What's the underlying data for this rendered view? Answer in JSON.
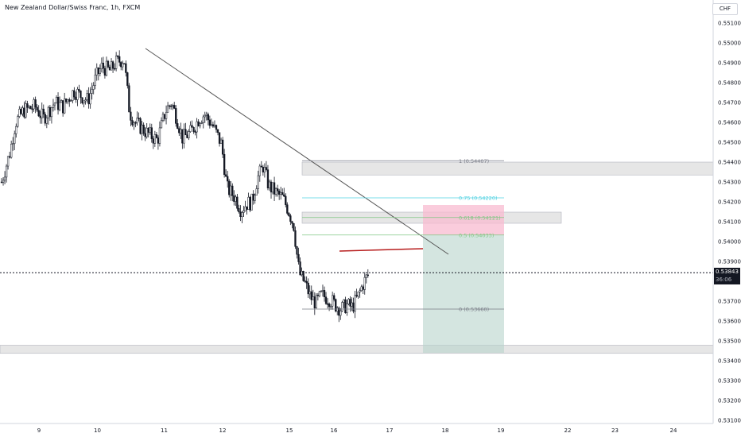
{
  "header": {
    "title": "New Zealand Dollar/Swiss Franc, 1h, FXCM",
    "currency": "CHF"
  },
  "price_tag": {
    "price": "0.53843",
    "countdown": "36:06"
  },
  "colors": {
    "up": "#131722",
    "down": "#131722",
    "trendline": "#555555",
    "fib_gray": "#787b86",
    "fib_teal": "#4dd0e1",
    "fib_green": "#81c784",
    "zone": "#e0e0e0",
    "red_zone": "#f8bbd0",
    "green_zone": "#b7d3cc",
    "red_line": "#b71c1c"
  },
  "chart_data": {
    "type": "candlestick",
    "symbol": "NZDCHF",
    "timeframe": "1h",
    "y_tick_labels": [
      "0.55100",
      "0.55000",
      "0.54900",
      "0.54800",
      "0.54700",
      "0.54600",
      "0.54500",
      "0.54400",
      "0.54300",
      "0.54200",
      "0.54100",
      "0.54000",
      "0.53900",
      "0.53700",
      "0.53600",
      "0.53500",
      "0.53400",
      "0.53300",
      "0.53200",
      "0.53100"
    ],
    "x_tick_labels": [
      {
        "label": "9",
        "x": 0
      },
      {
        "label": "10",
        "x": 21
      },
      {
        "label": "11",
        "x": 45
      },
      {
        "label": "12",
        "x": 66
      },
      {
        "label": "15",
        "x": 90
      },
      {
        "label": "16",
        "x": 106
      },
      {
        "label": "17",
        "x": 126
      },
      {
        "label": "18",
        "x": 146
      },
      {
        "label": "19",
        "x": 166
      },
      {
        "label": "22",
        "x": 190
      },
      {
        "label": "23",
        "x": 207
      },
      {
        "label": "24",
        "x": 228
      }
    ],
    "current_price": 0.53843,
    "close_path": [
      {
        "x": 0,
        "y": 0.543
      },
      {
        "x": 3,
        "y": 0.5445
      },
      {
        "x": 5,
        "y": 0.546
      },
      {
        "x": 8,
        "y": 0.5466
      },
      {
        "x": 12,
        "y": 0.5468
      },
      {
        "x": 15,
        "y": 0.5462
      },
      {
        "x": 19,
        "y": 0.547
      },
      {
        "x": 22,
        "y": 0.5468
      },
      {
        "x": 26,
        "y": 0.5476
      },
      {
        "x": 31,
        "y": 0.5471
      },
      {
        "x": 34,
        "y": 0.5483
      },
      {
        "x": 36,
        "y": 0.5488
      },
      {
        "x": 39,
        "y": 0.5486
      },
      {
        "x": 41,
        "y": 0.549
      },
      {
        "x": 44,
        "y": 0.5492
      },
      {
        "x": 46,
        "y": 0.5465
      },
      {
        "x": 48,
        "y": 0.546
      },
      {
        "x": 52,
        "y": 0.5455
      },
      {
        "x": 56,
        "y": 0.5451
      },
      {
        "x": 59,
        "y": 0.5466
      },
      {
        "x": 61,
        "y": 0.547
      },
      {
        "x": 63,
        "y": 0.5462
      },
      {
        "x": 65,
        "y": 0.5452
      },
      {
        "x": 68,
        "y": 0.5455
      },
      {
        "x": 71,
        "y": 0.5462
      },
      {
        "x": 73,
        "y": 0.5464
      },
      {
        "x": 76,
        "y": 0.5458
      },
      {
        "x": 79,
        "y": 0.5449
      },
      {
        "x": 81,
        "y": 0.5427
      },
      {
        "x": 84,
        "y": 0.5422
      },
      {
        "x": 86,
        "y": 0.5416
      },
      {
        "x": 88,
        "y": 0.5419
      },
      {
        "x": 90,
        "y": 0.542
      },
      {
        "x": 92,
        "y": 0.5432
      },
      {
        "x": 94,
        "y": 0.5438
      },
      {
        "x": 96,
        "y": 0.5428
      },
      {
        "x": 99,
        "y": 0.5424
      },
      {
        "x": 101,
        "y": 0.5422
      },
      {
        "x": 103,
        "y": 0.5416
      },
      {
        "x": 105,
        "y": 0.5408
      },
      {
        "x": 106,
        "y": 0.5395
      },
      {
        "x": 107,
        "y": 0.5384
      },
      {
        "x": 109,
        "y": 0.5379
      },
      {
        "x": 111,
        "y": 0.5372
      },
      {
        "x": 113,
        "y": 0.5369
      },
      {
        "x": 115,
        "y": 0.5373
      },
      {
        "x": 118,
        "y": 0.5371
      },
      {
        "x": 120,
        "y": 0.5368
      },
      {
        "x": 122,
        "y": 0.5366
      },
      {
        "x": 124,
        "y": 0.5368
      },
      {
        "x": 126,
        "y": 0.5367
      },
      {
        "x": 128,
        "y": 0.5372
      },
      {
        "x": 130,
        "y": 0.5379
      },
      {
        "x": 132,
        "y": 0.5384
      }
    ],
    "trendline": {
      "x1": 45,
      "y1": 0.54958,
      "x2": 144,
      "y2": 0.53912
    },
    "fibonacci": [
      {
        "level": 1,
        "label": "1 (0.54407)",
        "price": 0.54407,
        "color": "#787b86"
      },
      {
        "level": 0.75,
        "label": "0.75 (0.54220)",
        "price": 0.5422,
        "color": "#4dd0e1"
      },
      {
        "level": 0.618,
        "label": "0.618 (0.54121)",
        "price": 0.54121,
        "color": "#81c784"
      },
      {
        "level": 0.5,
        "label": "0.5 (0.54033)",
        "price": 0.54033,
        "color": "#81c784"
      },
      {
        "level": 0,
        "label": "0 (0.53660)",
        "price": 0.5366,
        "color": "#787b86"
      }
    ],
    "zones": [
      {
        "name": "upper-resistance-zone",
        "top": 0.544,
        "bottom": 0.54335
      },
      {
        "name": "fib-resistance-zone",
        "top": 0.54148,
        "bottom": 0.54092
      },
      {
        "name": "lower-support-zone",
        "top": 0.53478,
        "bottom": 0.53437
      }
    ],
    "position": {
      "entry": 0.54033,
      "stop": 0.54184,
      "target": 0.5344
    }
  }
}
